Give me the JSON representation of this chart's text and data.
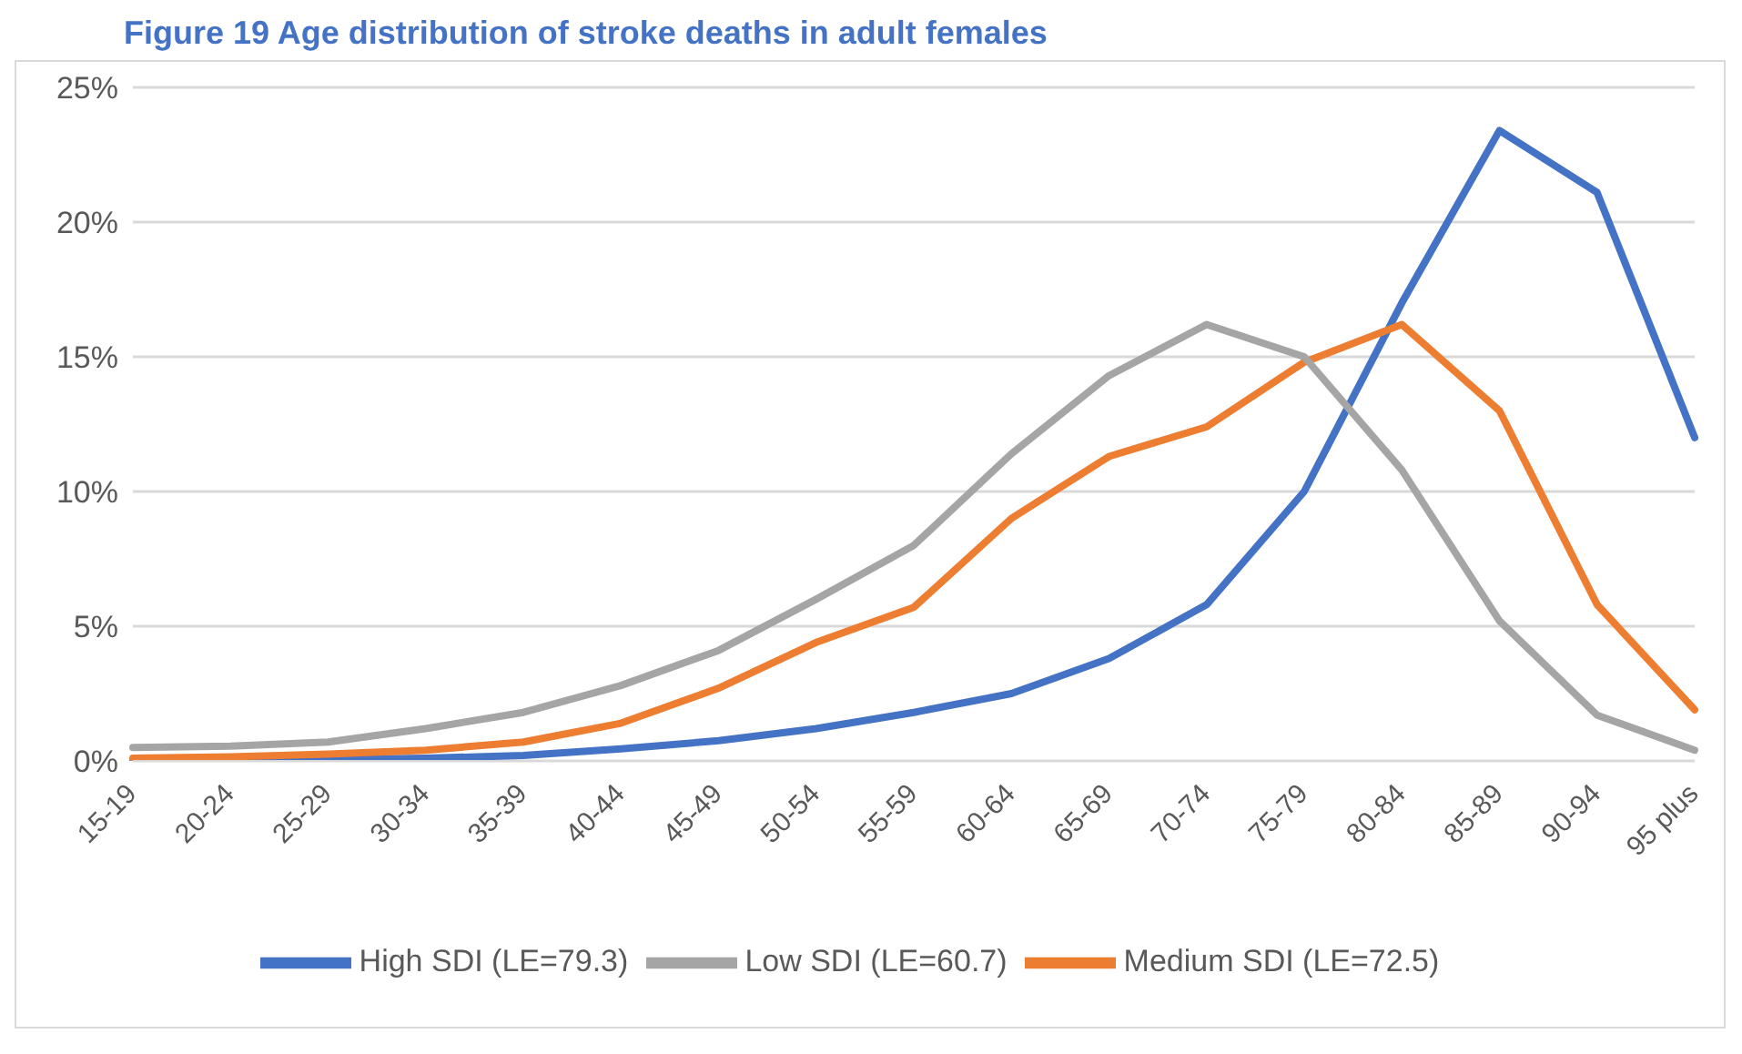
{
  "chart_data": {
    "type": "line",
    "title": "Figure 19 Age distribution of stroke deaths in adult females",
    "categories": [
      "15-19",
      "20-24",
      "25-29",
      "30-34",
      "35-39",
      "40-44",
      "45-49",
      "50-54",
      "55-59",
      "60-64",
      "65-69",
      "70-74",
      "75-79",
      "80-84",
      "85-89",
      "90-94",
      "95 plus"
    ],
    "series": [
      {
        "name": "High SDI (LE=79.3)",
        "color": "#4472c4",
        "values": [
          0,
          0,
          0.05,
          0.1,
          0.2,
          0.45,
          0.75,
          1.2,
          1.8,
          2.5,
          3.8,
          5.8,
          10.0,
          17.0,
          23.4,
          21.1,
          12.0
        ]
      },
      {
        "name": "Medium SDI (LE=72.5)",
        "color": "#ed7d31",
        "values": [
          0.1,
          0.15,
          0.25,
          0.4,
          0.7,
          1.4,
          2.7,
          4.4,
          5.7,
          9.0,
          11.3,
          12.4,
          14.8,
          16.2,
          13.0,
          5.8,
          1.9
        ]
      },
      {
        "name": "Low SDI (LE=60.7)",
        "color": "#a5a5a5",
        "values": [
          0.5,
          0.55,
          0.7,
          1.2,
          1.8,
          2.8,
          4.1,
          6.0,
          8.0,
          11.4,
          14.3,
          16.2,
          15.0,
          10.8,
          5.2,
          1.7,
          0.4
        ]
      }
    ],
    "ylim": [
      0,
      25
    ],
    "yticks": [
      {
        "value": 0,
        "label": "0%"
      },
      {
        "value": 5,
        "label": "5%"
      },
      {
        "value": 10,
        "label": "10%"
      },
      {
        "value": 15,
        "label": "15%"
      },
      {
        "value": 20,
        "label": "20%"
      },
      {
        "value": 25,
        "label": "25%"
      }
    ],
    "grid": "y",
    "legend": "bottom",
    "marker": "none",
    "line_style": "solid"
  }
}
